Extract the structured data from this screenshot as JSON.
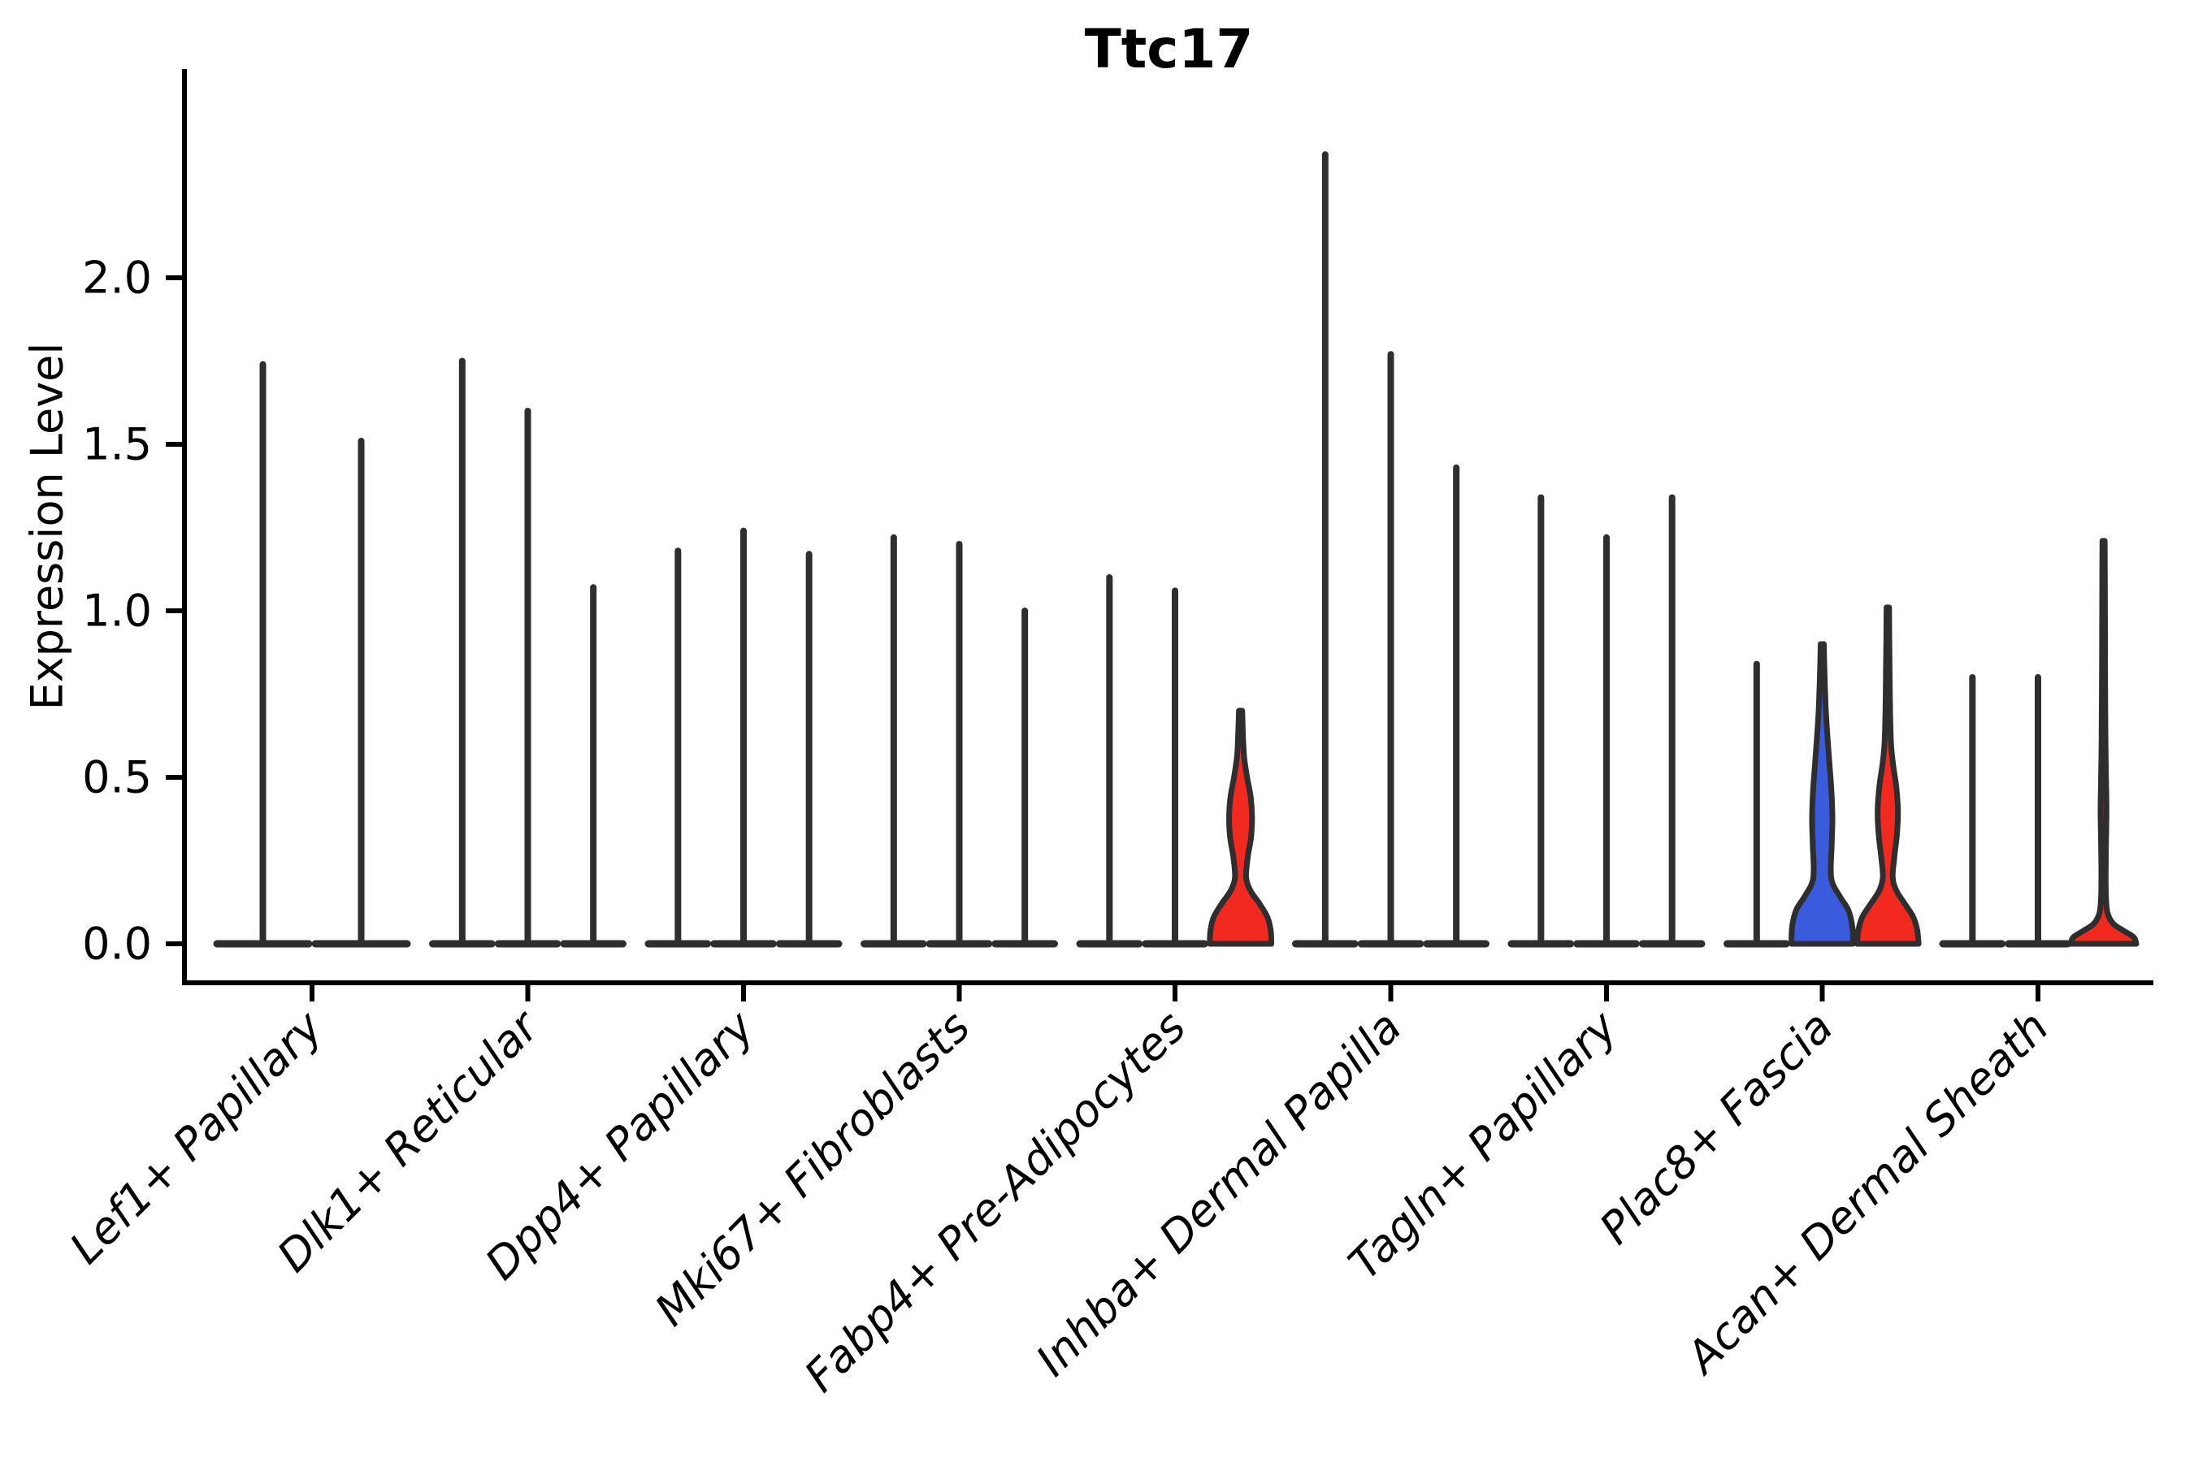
{
  "title": "Ttc17",
  "y_axis": {
    "label": "Expression Level"
  },
  "chart_data": {
    "type": "violin",
    "title": "Ttc17",
    "ylabel": "Expression Level",
    "xlabel": "",
    "ylim": [
      0,
      2.6
    ],
    "yticks": [
      0.0,
      0.5,
      1.0,
      1.5,
      2.0
    ],
    "grid": false,
    "legend": "none",
    "palette": {
      "red": "#f2291f",
      "blue": "#3a5bdc",
      "outline": "#2e2e2e",
      "axis": "#000000"
    },
    "categories": [
      "Lef1+ Papillary",
      "Dlk1+ Reticular",
      "Dpp4+ Papillary",
      "Mki67+ Fibroblasts",
      "Fabp4+ Pre-Adipocytes",
      "Inhba+ Dermal Papilla",
      "Tagln+ Papillary",
      "Plac8+ Fascia",
      "Acan+ Dermal Sheath"
    ],
    "groups": [
      {
        "category": "Lef1+ Papillary",
        "violins": [
          {
            "max": 1.74,
            "style": "spike",
            "color": "outline"
          },
          {
            "max": 1.51,
            "style": "spike",
            "color": "outline"
          }
        ]
      },
      {
        "category": "Dlk1+ Reticular",
        "violins": [
          {
            "max": 1.75,
            "style": "spike",
            "color": "outline"
          },
          {
            "max": 1.6,
            "style": "spike",
            "color": "outline"
          },
          {
            "max": 1.07,
            "style": "spike",
            "color": "outline"
          }
        ]
      },
      {
        "category": "Dpp4+ Papillary",
        "violins": [
          {
            "max": 1.18,
            "style": "spike",
            "color": "outline"
          },
          {
            "max": 1.24,
            "style": "spike",
            "color": "outline"
          },
          {
            "max": 1.17,
            "style": "spike",
            "color": "outline"
          }
        ]
      },
      {
        "category": "Mki67+ Fibroblasts",
        "violins": [
          {
            "max": 1.22,
            "style": "spike",
            "color": "outline"
          },
          {
            "max": 1.2,
            "style": "spike",
            "color": "outline"
          },
          {
            "max": 1.0,
            "style": "spike",
            "color": "outline"
          }
        ]
      },
      {
        "category": "Fabp4+ Pre-Adipocytes",
        "violins": [
          {
            "max": 1.1,
            "style": "spike",
            "color": "outline"
          },
          {
            "max": 1.06,
            "style": "spike",
            "color": "outline"
          },
          {
            "max": 0.7,
            "style": "filled",
            "color": "red",
            "profile": [
              [
                0,
                0.94
              ],
              [
                0.04,
                0.92
              ],
              [
                0.08,
                0.82
              ],
              [
                0.12,
                0.58
              ],
              [
                0.16,
                0.3
              ],
              [
                0.2,
                0.17
              ],
              [
                0.26,
                0.22
              ],
              [
                0.32,
                0.32
              ],
              [
                0.38,
                0.35
              ],
              [
                0.44,
                0.31
              ],
              [
                0.5,
                0.2
              ],
              [
                0.56,
                0.11
              ],
              [
                0.62,
                0.075
              ],
              [
                0.7,
                0.05
              ]
            ]
          }
        ]
      },
      {
        "category": "Inhba+ Dermal Papilla",
        "violins": [
          {
            "max": 2.37,
            "style": "spike",
            "color": "outline"
          },
          {
            "max": 1.77,
            "style": "spike",
            "color": "outline"
          },
          {
            "max": 1.43,
            "style": "spike",
            "color": "outline"
          }
        ]
      },
      {
        "category": "Tagln+ Papillary",
        "violins": [
          {
            "max": 1.34,
            "style": "spike",
            "color": "outline"
          },
          {
            "max": 1.22,
            "style": "spike",
            "color": "outline"
          },
          {
            "max": 1.34,
            "style": "spike",
            "color": "outline"
          }
        ]
      },
      {
        "category": "Plac8+ Fascia",
        "violins": [
          {
            "max": 0.84,
            "style": "spike",
            "color": "outline"
          },
          {
            "max": 0.9,
            "style": "filled",
            "color": "blue",
            "profile": [
              [
                0,
                0.94
              ],
              [
                0.05,
                0.92
              ],
              [
                0.1,
                0.8
              ],
              [
                0.14,
                0.55
              ],
              [
                0.18,
                0.32
              ],
              [
                0.22,
                0.26
              ],
              [
                0.3,
                0.29
              ],
              [
                0.38,
                0.31
              ],
              [
                0.46,
                0.28
              ],
              [
                0.54,
                0.22
              ],
              [
                0.62,
                0.16
              ],
              [
                0.7,
                0.11
              ],
              [
                0.78,
                0.08
              ],
              [
                0.85,
                0.06
              ],
              [
                0.9,
                0.05
              ]
            ]
          },
          {
            "max": 1.01,
            "style": "filled",
            "color": "red",
            "profile": [
              [
                0,
                0.94
              ],
              [
                0.04,
                0.9
              ],
              [
                0.08,
                0.78
              ],
              [
                0.12,
                0.52
              ],
              [
                0.16,
                0.26
              ],
              [
                0.2,
                0.15
              ],
              [
                0.26,
                0.2
              ],
              [
                0.33,
                0.28
              ],
              [
                0.4,
                0.31
              ],
              [
                0.47,
                0.26
              ],
              [
                0.54,
                0.16
              ],
              [
                0.6,
                0.1
              ],
              [
                0.7,
                0.07
              ],
              [
                0.82,
                0.055
              ],
              [
                0.92,
                0.045
              ],
              [
                1.01,
                0.04
              ]
            ]
          }
        ]
      },
      {
        "category": "Acan+ Dermal Sheath",
        "violins": [
          {
            "max": 0.8,
            "style": "spike",
            "color": "outline"
          },
          {
            "max": 0.8,
            "style": "spike",
            "color": "outline"
          },
          {
            "max": 1.21,
            "style": "filled",
            "color": "red",
            "profile": [
              [
                0,
                1.0
              ],
              [
                0.02,
                0.92
              ],
              [
                0.04,
                0.6
              ],
              [
                0.06,
                0.3
              ],
              [
                0.09,
                0.13
              ],
              [
                0.13,
                0.08
              ],
              [
                0.2,
                0.065
              ],
              [
                0.3,
                0.075
              ],
              [
                0.4,
                0.09
              ],
              [
                0.5,
                0.075
              ],
              [
                0.6,
                0.06
              ],
              [
                0.75,
                0.05
              ],
              [
                0.95,
                0.045
              ],
              [
                1.1,
                0.04
              ],
              [
                1.21,
                0.035
              ]
            ]
          }
        ]
      }
    ]
  }
}
